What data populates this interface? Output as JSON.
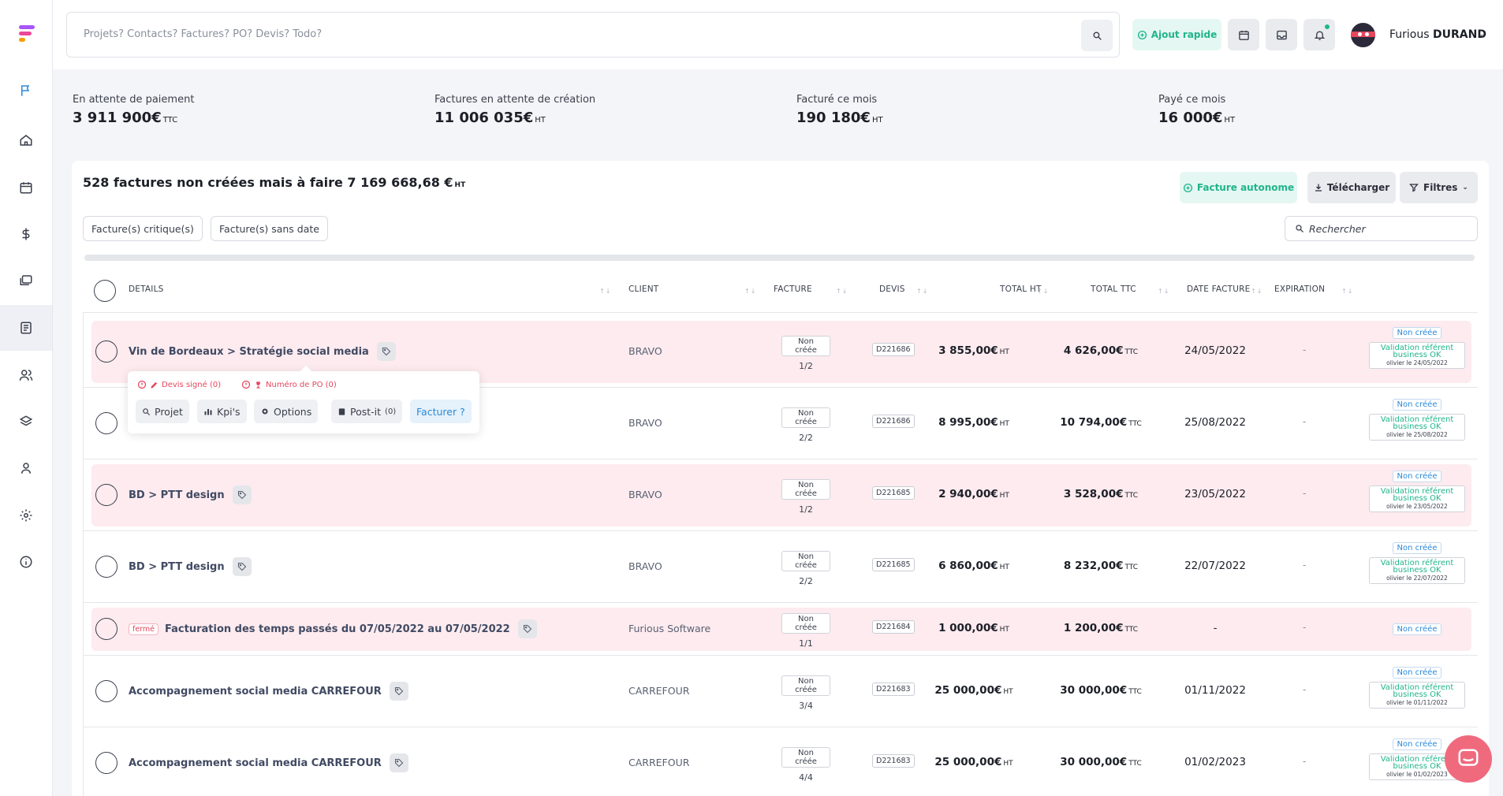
{
  "search": {
    "placeholder": "Projets? Contacts? Factures? PO? Devis? Todo?"
  },
  "topbar": {
    "quick_add": "Ajout rapide",
    "user_first": "Furious",
    "user_last": "DURAND"
  },
  "stats": [
    {
      "label": "En attente de paiement",
      "value": "3 911 900€",
      "unit": "TTC"
    },
    {
      "label": "Factures en attente de création",
      "value": "11 006 035€",
      "unit": "HT"
    },
    {
      "label": "Facturé ce mois",
      "value": "190 180€",
      "unit": "HT"
    },
    {
      "label": "Payé ce mois",
      "value": "16 000€",
      "unit": "HT"
    }
  ],
  "card": {
    "title": "528 factures non créées mais à faire 7 169 668,68 €",
    "title_unit": "HT",
    "btn_autonome": "Facture autonome",
    "btn_download": "Télécharger",
    "btn_filters": "Filtres",
    "pill_critical": "Facture(s) critique(s)",
    "pill_nodate": "Facture(s) sans date",
    "search_placeholder": "Rechercher"
  },
  "columns": {
    "details": "DETAILS",
    "client": "CLIENT",
    "facture": "FACTURE",
    "devis": "DEVIS",
    "total_ht": "TOTAL HT",
    "total_ttc": "TOTAL TTC",
    "date_facture": "DATE FACTURE",
    "expiration": "EXPIRATION"
  },
  "rows": [
    {
      "title": "Vin de Bordeaux > Stratégie social media",
      "client": "BRAVO",
      "badge": "Non créée",
      "frac": "1/2",
      "devis": "D221686",
      "ht": "3 855,00€",
      "ttc": "4 626,00€",
      "date": "24/05/2022",
      "exp": "-",
      "status": "Non créée",
      "valid1": "Validation référent",
      "valid2": "business OK",
      "valid_by": "olivier le 24/05/2022"
    },
    {
      "title": "",
      "client": "BRAVO",
      "badge": "Non créée",
      "frac": "2/2",
      "devis": "D221686",
      "ht": "8 995,00€",
      "ttc": "10 794,00€",
      "date": "25/08/2022",
      "exp": "-",
      "status": "Non créée",
      "valid1": "Validation référent",
      "valid2": "business OK",
      "valid_by": "olivier le 25/08/2022"
    },
    {
      "title": "BD > PTT design",
      "client": "BRAVO",
      "badge": "Non créée",
      "frac": "1/2",
      "devis": "D221685",
      "ht": "2 940,00€",
      "ttc": "3 528,00€",
      "date": "23/05/2022",
      "exp": "-",
      "status": "Non créée",
      "valid1": "Validation référent",
      "valid2": "business OK",
      "valid_by": "olivier le 23/05/2022"
    },
    {
      "title": "BD > PTT design",
      "client": "BRAVO",
      "badge": "Non créée",
      "frac": "2/2",
      "devis": "D221685",
      "ht": "6 860,00€",
      "ttc": "8 232,00€",
      "date": "22/07/2022",
      "exp": "-",
      "status": "Non créée",
      "valid1": "Validation référent",
      "valid2": "business OK",
      "valid_by": "olivier le 22/07/2022"
    },
    {
      "title": "Facturation des temps passés du 07/05/2022 au 07/05/2022",
      "tag": "fermé",
      "client": "Furious Software",
      "badge": "Non créée",
      "frac": "1/1",
      "devis": "D221684",
      "ht": "1 000,00€",
      "ttc": "1 200,00€",
      "date": "-",
      "exp": "-",
      "status": "Non créée"
    },
    {
      "title": "Accompagnement social media CARREFOUR",
      "client": "CARREFOUR",
      "badge": "Non créée",
      "frac": "3/4",
      "devis": "D221683",
      "ht": "25 000,00€",
      "ttc": "30 000,00€",
      "date": "01/11/2022",
      "exp": "-",
      "status": "Non créée",
      "valid1": "Validation référent",
      "valid2": "business OK",
      "valid_by": "olivier le 01/11/2022"
    },
    {
      "title": "Accompagnement social media CARREFOUR",
      "client": "CARREFOUR",
      "badge": "Non créée",
      "frac": "4/4",
      "devis": "D221683",
      "ht": "25 000,00€",
      "ttc": "30 000,00€",
      "date": "01/02/2023",
      "exp": "-",
      "status": "Non créée",
      "valid1": "Validation référent",
      "valid2": "business OK",
      "valid_by": "olivier le 01/02/2023"
    }
  ],
  "units": {
    "ht": "HT",
    "ttc": "TTC"
  },
  "popover": {
    "warn_devis": "Devis signé (0)",
    "warn_po": "Numéro de PO (0)",
    "btn_projet": "Projet",
    "btn_kpis": "Kpi's",
    "btn_options": "Options",
    "btn_postit": "Post-it",
    "postit_count": "(0)",
    "btn_facturer": "Facturer ?"
  },
  "colors": {
    "accent_green": "#1fb58a",
    "pink_row": "#fdebef",
    "danger": "#e6465e",
    "link_blue": "#2b8ad9"
  }
}
